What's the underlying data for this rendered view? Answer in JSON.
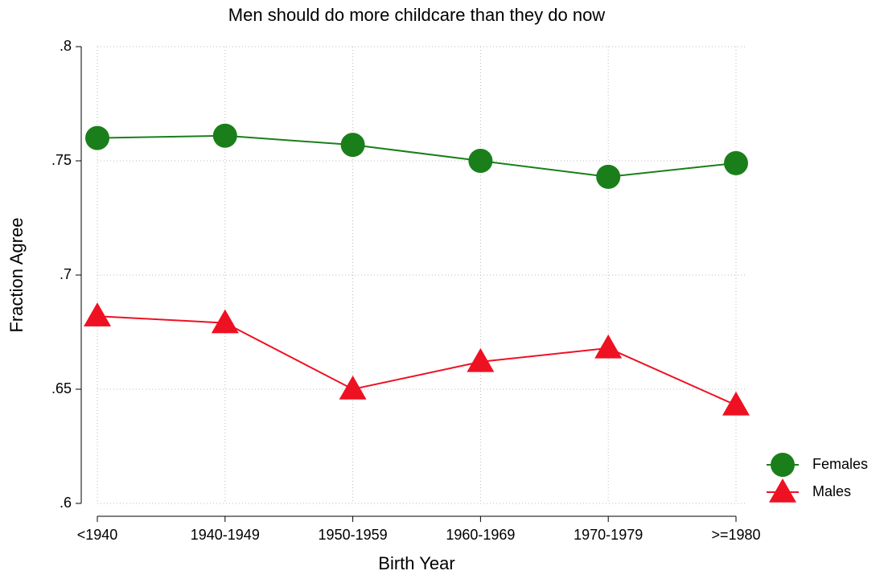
{
  "chart_data": {
    "type": "line",
    "title": "Men should do more childcare than they do now",
    "x_label": "Birth Year",
    "y_label": "Fraction Agree",
    "categories": [
      "<1940",
      "1940-1949",
      "1950-1959",
      "1960-1969",
      "1970-1979",
      ">=1980"
    ],
    "series": [
      {
        "name": "Females",
        "color": "#1a7f1a",
        "marker": "circle",
        "values": [
          0.76,
          0.761,
          0.757,
          0.75,
          0.743,
          0.749
        ]
      },
      {
        "name": "Males",
        "color": "#ee1122",
        "marker": "triangle",
        "values": [
          0.682,
          0.679,
          0.65,
          0.662,
          0.668,
          0.643
        ]
      }
    ],
    "ylim": [
      0.6,
      0.8
    ],
    "yticks": [
      {
        "value": 0.6,
        "label": ".6"
      },
      {
        "value": 0.65,
        "label": ".65"
      },
      {
        "value": 0.7,
        "label": ".7"
      },
      {
        "value": 0.75,
        "label": ".75"
      },
      {
        "value": 0.8,
        "label": ".8"
      }
    ],
    "grid": true,
    "legend": "right"
  }
}
